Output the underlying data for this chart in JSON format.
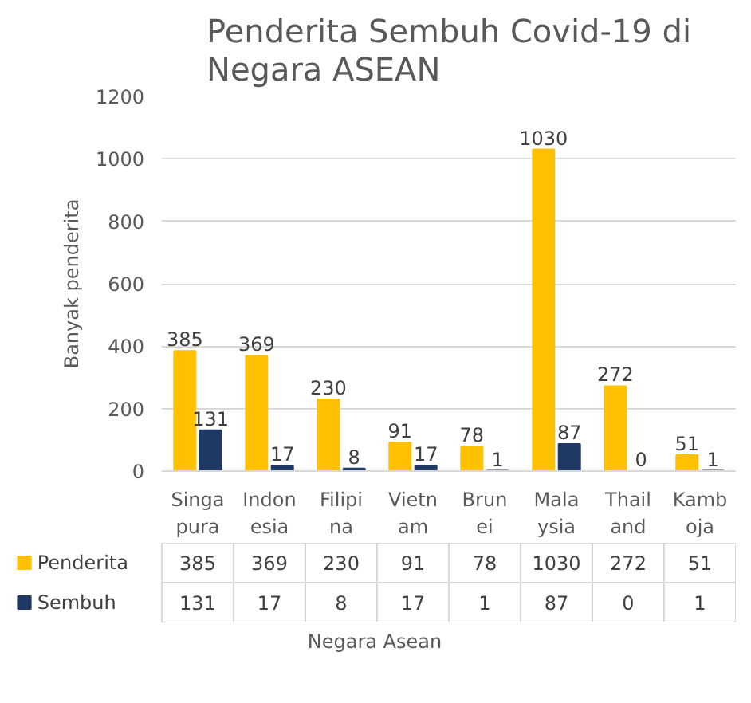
{
  "chart_data": {
    "type": "bar",
    "title": "Penderita Sembuh Covid-19 di Negara ASEAN",
    "xlabel": "Negara Asean",
    "ylabel": "Banyak penderita",
    "categories": [
      "Singa\npura",
      "Indon\nesia",
      "Filipi\nna",
      "Vietn\nam",
      "Brun\nei",
      "Mala\nysia",
      "Thail\nand",
      "Kamb\noja"
    ],
    "series": [
      {
        "name": "Penderita",
        "color": "#ffc000",
        "values": [
          385,
          369,
          230,
          91,
          78,
          1030,
          272,
          51
        ],
        "value_labels": [
          "385",
          "369",
          "230",
          "91",
          "78",
          "1030",
          "272",
          "51"
        ]
      },
      {
        "name": "Sembuh",
        "color": "#203864",
        "values": [
          131,
          17,
          8,
          17,
          1,
          87,
          0,
          1
        ],
        "value_labels": [
          "131",
          "17",
          "8",
          "17",
          "1",
          "87",
          "0",
          "1"
        ]
      }
    ],
    "ylim": [
      0,
      1200
    ],
    "yticks": [
      0,
      200,
      400,
      600,
      800,
      1000,
      1200
    ],
    "grid": "y",
    "data_labels": true,
    "legend": "bottom"
  }
}
